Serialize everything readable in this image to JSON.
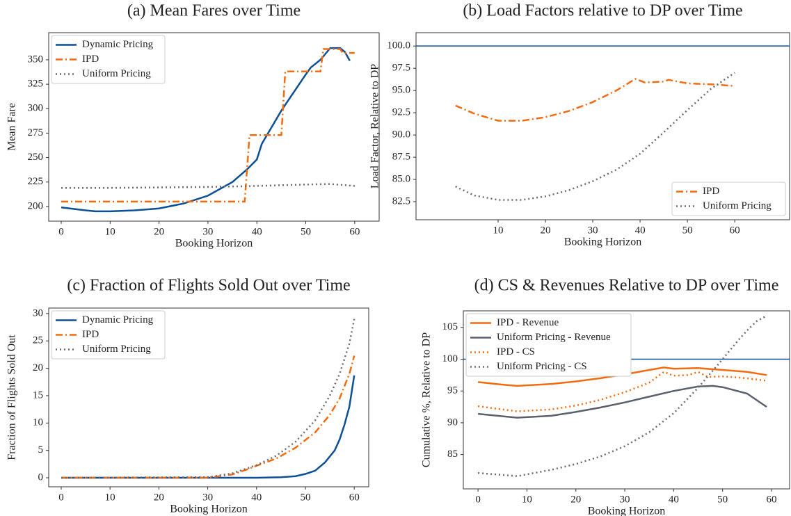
{
  "chart_data": [
    {
      "type": "line",
      "title": "(a) Mean Fares over Time",
      "xlabel": "Booking Horizon",
      "ylabel": "Mean Fare",
      "xlim": [
        -2.56,
        65
      ],
      "ylim": [
        185,
        377.7
      ],
      "xticks": [
        0,
        10,
        20,
        30,
        40,
        50,
        60
      ],
      "yticks": [
        200,
        225,
        250,
        275,
        300,
        325,
        350
      ],
      "legend": "upper left",
      "series": [
        {
          "name": "Dynamic Pricing",
          "color": "#0b4f96",
          "linestyle": "solid",
          "x": [
            0,
            5,
            7,
            10,
            15,
            20,
            25,
            30,
            35,
            38,
            40,
            41,
            45,
            50,
            51,
            53,
            55,
            57,
            58,
            59
          ],
          "values": [
            199,
            196,
            195,
            195,
            196,
            198,
            203,
            211,
            225,
            238,
            248,
            264,
            298,
            335,
            342,
            350,
            362,
            362,
            358,
            349
          ]
        },
        {
          "name": "IPD",
          "color": "#f26b0f",
          "linestyle": "dashdot",
          "x": [
            0,
            37.5,
            38.5,
            45,
            45.8,
            53,
            53.6,
            57,
            57.6,
            60
          ],
          "values": [
            205,
            205,
            273,
            273,
            338,
            338,
            361,
            361,
            357,
            357
          ]
        },
        {
          "name": "Uniform Pricing",
          "color": "#6b6b6b",
          "linestyle": "dotted",
          "x": [
            0,
            10,
            20,
            30,
            40,
            50,
            55,
            60
          ],
          "values": [
            219,
            219,
            219.5,
            220,
            221,
            222.5,
            223,
            221
          ]
        }
      ]
    },
    {
      "type": "line",
      "title": "(b) Load Factors relative to DP over Time",
      "xlabel": "Booking Horizon",
      "ylabel": "Load Factor, Relative to DP",
      "xlim": [
        -7.35,
        71.6
      ],
      "ylim": [
        80.47,
        101.5
      ],
      "xticks": [
        10,
        20,
        30,
        40,
        50,
        60
      ],
      "yticks": [
        82.5,
        {
          "value": 85,
          "label": "85.0"
        },
        87.5,
        {
          "value": 90,
          "label": "90.0"
        },
        92.5,
        {
          "value": 95,
          "label": "95.0"
        },
        97.5,
        {
          "value": 100,
          "label": "100.0"
        }
      ],
      "legend": "lower right",
      "reference_line": 100,
      "reference_color": "#0b4f96",
      "series": [
        {
          "name": "IPD",
          "color": "#f26b0f",
          "linestyle": "dashdot",
          "x": [
            1,
            5,
            10,
            15,
            20,
            25,
            30,
            35,
            39,
            41,
            45,
            46,
            50,
            55,
            60
          ],
          "values": [
            93.3,
            92.4,
            91.6,
            91.6,
            92,
            92.7,
            93.7,
            95,
            96.3,
            95.9,
            96,
            96.2,
            95.8,
            95.7,
            95.5
          ]
        },
        {
          "name": "Uniform Pricing",
          "color": "#6b6b6b",
          "linestyle": "dotted",
          "x": [
            1,
            5,
            10,
            15,
            20,
            25,
            30,
            35,
            40,
            45,
            50,
            55,
            60
          ],
          "values": [
            84.2,
            83.2,
            82.7,
            82.7,
            83.1,
            83.8,
            84.8,
            86.1,
            87.9,
            90.3,
            92.8,
            95.2,
            97
          ]
        }
      ]
    },
    {
      "type": "line",
      "title": "(c) Fraction of Flights Sold Out over Time",
      "xlabel": "Booking Horizon",
      "ylabel": "Fraction of Flights Sold Out",
      "xlim": [
        -2.56,
        62.96
      ],
      "ylim": [
        -1.65,
        31
      ],
      "xticks": [
        0,
        10,
        20,
        30,
        40,
        50,
        60
      ],
      "yticks": [
        0,
        5,
        10,
        15,
        20,
        25,
        30
      ],
      "legend": "upper left",
      "series": [
        {
          "name": "Dynamic Pricing",
          "color": "#0b4f96",
          "linestyle": "solid",
          "x": [
            0,
            40,
            45,
            48,
            50,
            52,
            54,
            56,
            57,
            58,
            59,
            60
          ],
          "values": [
            0,
            0,
            0.1,
            0.3,
            0.7,
            1.3,
            2.8,
            5,
            7,
            9.7,
            13,
            18.7
          ]
        },
        {
          "name": "IPD",
          "color": "#f26b0f",
          "linestyle": "dashdot",
          "x": [
            0,
            30,
            35,
            38,
            40,
            44,
            48,
            52,
            55,
            57,
            59,
            60
          ],
          "values": [
            0,
            0,
            0.6,
            1.5,
            2.2,
            3.5,
            5.5,
            8.3,
            11.5,
            14.5,
            19,
            22.3
          ]
        },
        {
          "name": "Uniform Pricing",
          "color": "#6b6b6b",
          "linestyle": "dotted",
          "x": [
            0,
            30,
            35,
            40,
            44,
            48,
            52,
            55,
            57,
            59,
            60
          ],
          "values": [
            0,
            0.1,
            0.8,
            2.3,
            4,
            6.6,
            10.5,
            15,
            19,
            24.5,
            29
          ]
        }
      ]
    },
    {
      "type": "line",
      "title": "(d) CS & Revenues Relative to DP over Time",
      "xlabel": "Booking Horizon",
      "ylabel": "Cumulative %, Relative to DP",
      "xlim": [
        -3,
        63.7
      ],
      "ylim": [
        79.6,
        107.6
      ],
      "xticks": [
        0,
        10,
        20,
        30,
        40,
        50,
        60
      ],
      "yticks": [
        85,
        90,
        95,
        100,
        105
      ],
      "legend": "upper left",
      "reference_line": 100,
      "reference_color": "#0b4f96",
      "series": [
        {
          "name": "IPD - Revenue",
          "color": "#f26b0f",
          "linestyle": "solid",
          "x": [
            0,
            5,
            8,
            15,
            20,
            25,
            30,
            35,
            38,
            40,
            45,
            50,
            55,
            59
          ],
          "values": [
            96.4,
            96,
            95.8,
            96.1,
            96.5,
            97,
            97.6,
            98.3,
            98.7,
            98.5,
            98.6,
            98.3,
            98,
            97.5
          ]
        },
        {
          "name": "Uniform Pricing - Revenue",
          "color": "#5a5f6e",
          "linestyle": "solid",
          "x": [
            0,
            8,
            15,
            20,
            25,
            30,
            35,
            40,
            45,
            48,
            50,
            55,
            59
          ],
          "values": [
            91.4,
            90.8,
            91.1,
            91.7,
            92.4,
            93.2,
            94.1,
            95,
            95.7,
            95.8,
            95.6,
            94.6,
            92.5
          ]
        },
        {
          "name": "IPD - CS",
          "color": "#f26b0f",
          "linestyle": "dotted",
          "x": [
            0,
            8,
            15,
            20,
            25,
            30,
            35,
            38,
            40,
            43,
            45,
            47,
            50,
            55,
            59
          ],
          "values": [
            92.6,
            91.8,
            92.1,
            92.7,
            93.6,
            94.8,
            96.3,
            98,
            97.4,
            97.5,
            98,
            97.2,
            97.3,
            97,
            96.6
          ]
        },
        {
          "name": "Uniform Pricing - CS",
          "color": "#6b6b6b",
          "linestyle": "dotted",
          "x": [
            0,
            8,
            15,
            20,
            25,
            30,
            35,
            40,
            45,
            50,
            53,
            55,
            57,
            59
          ],
          "values": [
            82.1,
            81.6,
            82.6,
            83.5,
            84.7,
            86.3,
            88.5,
            91.5,
            95.5,
            100,
            102.8,
            104.5,
            106,
            106.8
          ]
        }
      ]
    }
  ]
}
